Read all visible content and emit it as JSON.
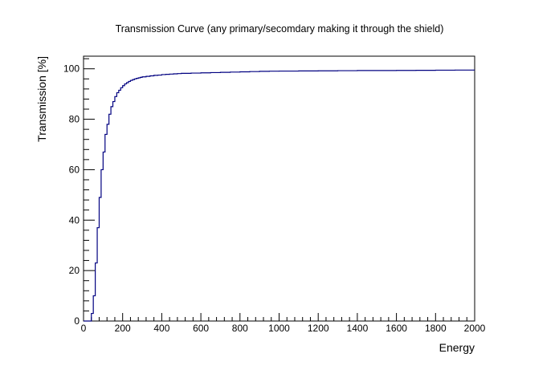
{
  "chart_data": {
    "type": "line",
    "style": "step-histogram",
    "title": "Transmission Curve (any primary/secomdary making it through the shield)",
    "xlabel": "Energy",
    "ylabel": "Transmission [%]",
    "xlim": [
      0,
      2000
    ],
    "ylim": [
      0,
      105
    ],
    "x_ticks": [
      0,
      200,
      400,
      600,
      800,
      1000,
      1200,
      1400,
      1600,
      1800,
      2000
    ],
    "y_ticks": [
      0,
      20,
      40,
      60,
      80,
      100
    ],
    "x_tick_labels": [
      "0",
      "200",
      "400",
      "600",
      "800",
      "1000",
      "1200",
      "1400",
      "1600",
      "1800",
      "2000"
    ],
    "y_tick_labels": [
      "0",
      "20",
      "40",
      "60",
      "80",
      "100"
    ],
    "grid": false,
    "legend": "none",
    "line_color": "#000080",
    "series": [
      {
        "bin_width": 10,
        "x": [
          0,
          10,
          20,
          30,
          40,
          50,
          60,
          70,
          80,
          90,
          100,
          110,
          120,
          130,
          140,
          150,
          160,
          170,
          180,
          190,
          200,
          210,
          220,
          230,
          240,
          250,
          260,
          270,
          280,
          290,
          300,
          320,
          340,
          360,
          380,
          400,
          420,
          440,
          460,
          480,
          500,
          550,
          600,
          650,
          700,
          750,
          800,
          850,
          900,
          950,
          1000,
          1100,
          1200,
          1300,
          1400,
          1500,
          1600,
          1700,
          1800,
          1900
        ],
        "values": [
          0,
          0,
          0,
          0,
          3,
          10,
          23,
          37,
          49,
          60,
          67,
          74,
          78,
          82,
          85,
          87,
          89,
          90.5,
          91.5,
          92.5,
          93.3,
          94,
          94.5,
          95,
          95.4,
          95.7,
          96,
          96.2,
          96.4,
          96.6,
          96.8,
          97,
          97.2,
          97.4,
          97.5,
          97.7,
          97.8,
          97.9,
          98,
          98.1,
          98.2,
          98.3,
          98.4,
          98.5,
          98.6,
          98.7,
          98.8,
          98.9,
          99,
          99.05,
          99.1,
          99.15,
          99.2,
          99.25,
          99.3,
          99.3,
          99.35,
          99.4,
          99.45,
          99.5
        ]
      }
    ]
  }
}
